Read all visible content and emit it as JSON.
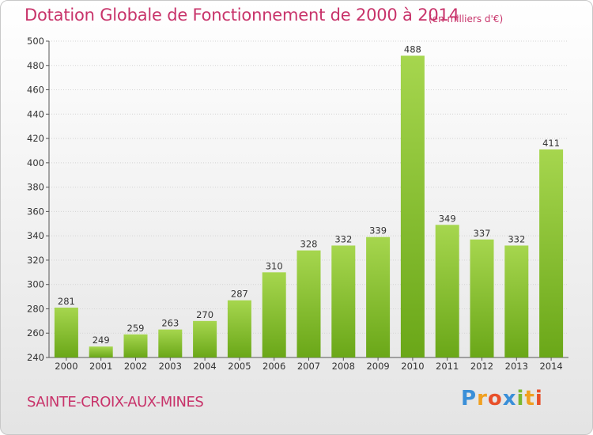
{
  "title": "Dotation Globale de Fonctionnement de 2000 à 2014",
  "subtitle": "(en milliers d'€)",
  "commune": "SAINTE-CROIX-AUX-MINES",
  "logo": "Proxiti",
  "colors": {
    "bar_top": "#a6d64e",
    "bar_bottom": "#6aa718",
    "title": "#c8336a"
  },
  "chart_data": {
    "type": "bar",
    "categories": [
      "2000",
      "2001",
      "2002",
      "2003",
      "2004",
      "2005",
      "2006",
      "2007",
      "2008",
      "2009",
      "2010",
      "2011",
      "2012",
      "2013",
      "2014"
    ],
    "values": [
      281,
      249,
      259,
      263,
      270,
      287,
      310,
      328,
      332,
      339,
      488,
      349,
      337,
      332,
      411
    ],
    "title": "Dotation Globale de Fonctionnement de 2000 à 2014",
    "ylabel": "(en milliers d'€)",
    "ylim": [
      240,
      500
    ],
    "yticks": [
      240,
      260,
      280,
      300,
      320,
      340,
      360,
      380,
      400,
      420,
      440,
      460,
      480,
      500
    ],
    "grid": true
  }
}
